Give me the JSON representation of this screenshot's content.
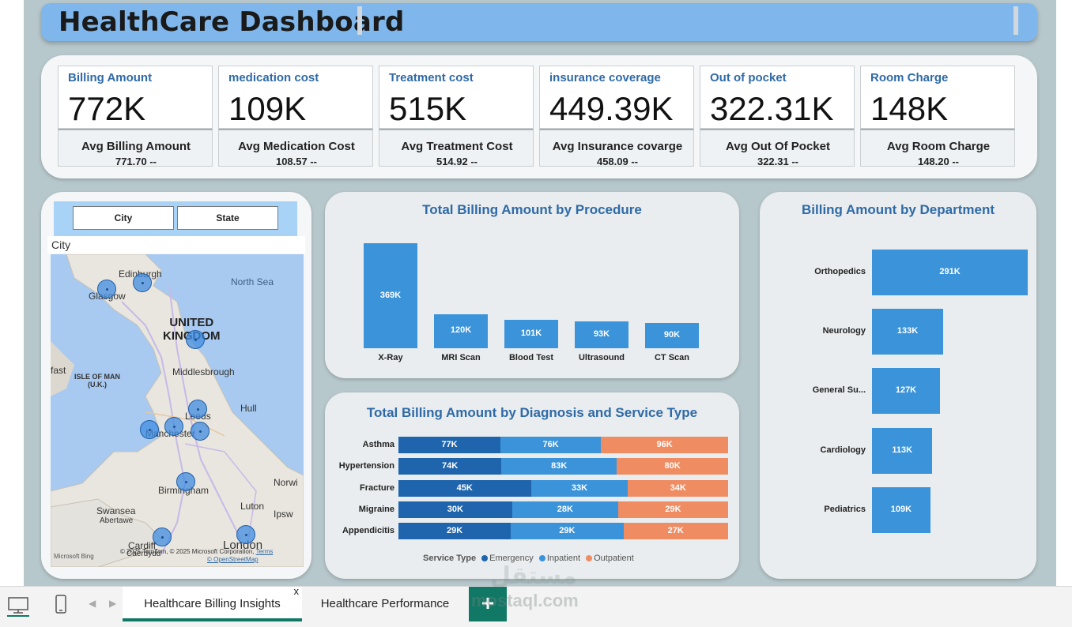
{
  "header": {
    "title": "HealthCare Dashboard"
  },
  "kpis": [
    {
      "label": "Billing Amount",
      "value": "772K",
      "avg_label": "Avg Billing Amount",
      "avg_value": "771.70 --"
    },
    {
      "label": "medication cost",
      "value": "109K",
      "avg_label": "Avg Medication Cost",
      "avg_value": "108.57 --"
    },
    {
      "label": "Treatment cost",
      "value": "515K",
      "avg_label": "Avg Treatment Cost",
      "avg_value": "514.92 --"
    },
    {
      "label": "insurance coverage",
      "value": "449.39K",
      "avg_label": "Avg Insurance covarge",
      "avg_value": "458.09 --"
    },
    {
      "label": "Out of pocket",
      "value": "322.31K",
      "avg_label": "Avg Out Of Pocket",
      "avg_value": "322.31 --"
    },
    {
      "label": "Room Charge",
      "value": "148K",
      "avg_label": "Avg Room Charge",
      "avg_value": "148.20 --"
    }
  ],
  "map": {
    "slicers": {
      "city": "City",
      "state": "State"
    },
    "label": "City",
    "places": {
      "edinburgh": "Edinburgh",
      "glasgow": "Glasgow",
      "north_sea": "North Sea",
      "uk_line1": "UNITED",
      "uk_line2": "KINGDOM",
      "fast": "fast",
      "isle_line1": "ISLE OF MAN",
      "isle_line2": "(U.K.)",
      "middlesbrough": "Middlesbrough",
      "hull": "Hull",
      "leeds": "Leeds",
      "manchester": "Manchester",
      "norwich": "Norwi",
      "birmingham": "Birmingham",
      "swansea": "Swansea",
      "abertawe": "Abertawe",
      "luton": "Luton",
      "ipswich": "Ipsw",
      "cardiff": "Cardiff",
      "caerdydd": "Caerdydd",
      "london": "London"
    },
    "attribution": {
      "bing": "Microsoft Bing",
      "copyright": "© 2025 TomTom, © 2025 Microsoft Corporation,",
      "terms": "Terms",
      "osm": "© OpenStreetMap"
    }
  },
  "colors": {
    "bar": "#3b93d9",
    "emergency": "#1f65ad",
    "inpatient": "#3b93d9",
    "outpatient": "#ef8c62"
  },
  "chart_data": [
    {
      "type": "bar",
      "title": "Total Billing Amount by Procedure",
      "categories": [
        "X-Ray",
        "MRI Scan",
        "Blood Test",
        "Ultrasound",
        "CT Scan"
      ],
      "values": [
        369,
        120,
        101,
        93,
        90
      ],
      "data_labels": [
        "369K",
        "120K",
        "101K",
        "93K",
        "90K"
      ],
      "unit": "K"
    },
    {
      "type": "bar",
      "orientation": "horizontal-stacked",
      "title": "Total Billing Amount by Diagnosis and Service Type",
      "categories": [
        "Asthma",
        "Hypertension",
        "Fracture",
        "Migraine",
        "Appendicitis"
      ],
      "series": [
        {
          "name": "Emergency",
          "values": [
            77,
            74,
            45,
            30,
            29
          ],
          "labels": [
            "77K",
            "74K",
            "45K",
            "30K",
            "29K"
          ]
        },
        {
          "name": "Inpatient",
          "values": [
            76,
            83,
            33,
            28,
            29
          ],
          "labels": [
            "76K",
            "83K",
            "33K",
            "28K",
            "29K"
          ]
        },
        {
          "name": "Outpatient",
          "values": [
            96,
            80,
            34,
            29,
            27
          ],
          "labels": [
            "96K",
            "80K",
            "34K",
            "29K",
            "27K"
          ]
        }
      ],
      "legend_title": "Service Type",
      "stacking": "percent"
    },
    {
      "type": "bar",
      "orientation": "horizontal",
      "title": "Billing Amount by Department",
      "categories": [
        "Orthopedics",
        "Neurology",
        "General Su...",
        "Cardiology",
        "Pediatrics"
      ],
      "values": [
        291,
        133,
        127,
        113,
        109
      ],
      "data_labels": [
        "291K",
        "133K",
        "127K",
        "113K",
        "109K"
      ],
      "unit": "K"
    }
  ],
  "tabs": [
    {
      "label": "Healthcare Billing Insights",
      "active": true,
      "close": "x"
    },
    {
      "label": "Healthcare Performance",
      "active": false
    }
  ],
  "add_tab": "+",
  "watermark": {
    "latin": "mostaql.com",
    "arabic": "مستقل"
  }
}
